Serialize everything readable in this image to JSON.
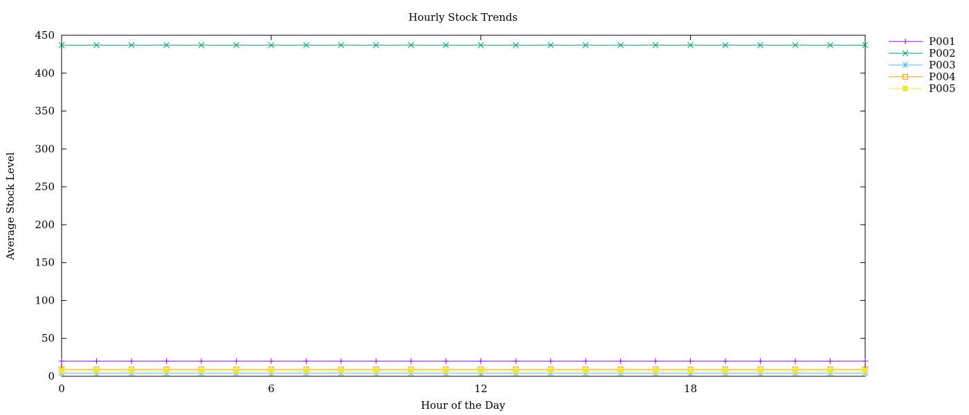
{
  "chart_data": {
    "type": "line",
    "title": "Hourly Stock Trends",
    "xlabel": "Hour of the Day",
    "ylabel": "Average Stock Level",
    "xlim": [
      0,
      23
    ],
    "ylim": [
      0,
      450
    ],
    "xticks": [
      0,
      6,
      12,
      18
    ],
    "yticks": [
      0,
      50,
      100,
      150,
      200,
      250,
      300,
      350,
      400,
      450
    ],
    "grid": false,
    "legend_position": "outside-top-right",
    "x": [
      0,
      1,
      2,
      3,
      4,
      5,
      6,
      7,
      8,
      9,
      10,
      11,
      12,
      13,
      14,
      15,
      16,
      17,
      18,
      19,
      20,
      21,
      22,
      23
    ],
    "series": [
      {
        "name": "P001",
        "color": "#9400d3",
        "marker": "plus",
        "values": [
          20,
          20,
          20,
          20,
          20,
          20,
          20,
          20,
          20,
          20,
          20,
          20,
          20,
          20,
          20,
          20,
          20,
          20,
          20,
          20,
          20,
          20,
          20,
          20
        ]
      },
      {
        "name": "P002",
        "color": "#009e73",
        "marker": "cross",
        "values": [
          437,
          437,
          437,
          437,
          437,
          437,
          437,
          437,
          437,
          437,
          437,
          437,
          437,
          437,
          437,
          437,
          437,
          437,
          437,
          437,
          437,
          437,
          437,
          437
        ]
      },
      {
        "name": "P003",
        "color": "#56b4e9",
        "marker": "star",
        "values": [
          4,
          4,
          4,
          4,
          4,
          4,
          4,
          4,
          4,
          4,
          4,
          4,
          4,
          4,
          4,
          4,
          4,
          4,
          4,
          4,
          4,
          4,
          4,
          4
        ]
      },
      {
        "name": "P004",
        "color": "#e69f00",
        "marker": "open-square",
        "values": [
          9,
          9,
          9,
          9,
          9,
          9,
          9,
          9,
          9,
          9,
          9,
          9,
          9,
          9,
          9,
          9,
          9,
          9,
          9,
          9,
          9,
          9,
          9,
          9
        ]
      },
      {
        "name": "P005",
        "color": "#f0e442",
        "marker": "filled-square",
        "values": [
          7,
          7,
          7,
          7,
          7,
          7,
          7,
          7,
          7,
          7,
          7,
          7,
          7,
          7,
          7,
          7,
          7,
          7,
          7,
          7,
          7,
          7,
          7,
          7
        ]
      }
    ]
  }
}
